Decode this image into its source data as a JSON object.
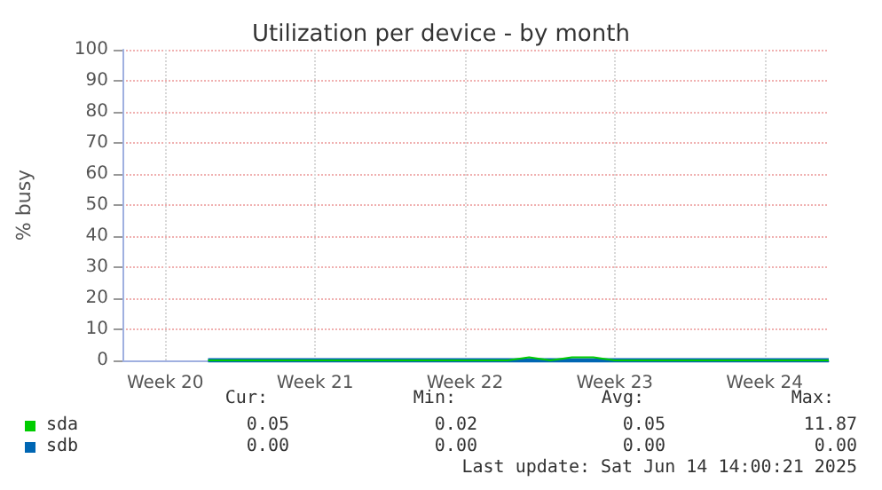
{
  "chart_data": {
    "type": "line",
    "title": "Utilization per device - by month",
    "ylabel": "% busy",
    "categories": [
      null,
      null,
      "Week 20",
      null,
      null,
      null,
      null,
      null,
      null,
      "Week 21",
      null,
      null,
      null,
      null,
      null,
      null,
      "Week 22",
      null,
      null,
      null,
      null,
      null,
      null,
      "Week 23",
      null,
      null,
      null,
      null,
      null,
      null,
      "Week 24",
      null,
      null,
      null
    ],
    "ylim": [
      0,
      100
    ],
    "yticks": [
      0,
      10,
      20,
      30,
      40,
      50,
      60,
      70,
      80,
      90,
      100
    ],
    "grid": true,
    "legend": "bottom left",
    "marker": "none",
    "line_style": "solid",
    "series": [
      {
        "name": "sda",
        "color": "#00cc00",
        "values": [
          null,
          null,
          null,
          null,
          0,
          0,
          0,
          0,
          0,
          0,
          0,
          0,
          0,
          0,
          0,
          0,
          0,
          0,
          0,
          1,
          0,
          1,
          1,
          0,
          0,
          0,
          0,
          0,
          0,
          0,
          0,
          0,
          0,
          0
        ]
      },
      {
        "name": "sdb",
        "color": "#0066b3",
        "values": [
          null,
          null,
          null,
          null,
          0,
          0,
          0,
          0,
          0,
          0,
          0,
          0,
          0,
          0,
          0,
          0,
          0,
          0,
          0,
          0,
          0,
          0,
          0,
          0,
          0,
          0,
          0,
          0,
          0,
          0,
          0,
          0,
          0,
          0
        ]
      }
    ],
    "annotations": [
      "Cur:",
      "Min:",
      "Avg:",
      "Max:",
      "0.05",
      "0.02",
      "0.05",
      "11.87",
      "0.00",
      "0.00",
      "0.00",
      "0.00",
      "Last update: Sat Jun 14 14:00:21 2025"
    ]
  }
}
